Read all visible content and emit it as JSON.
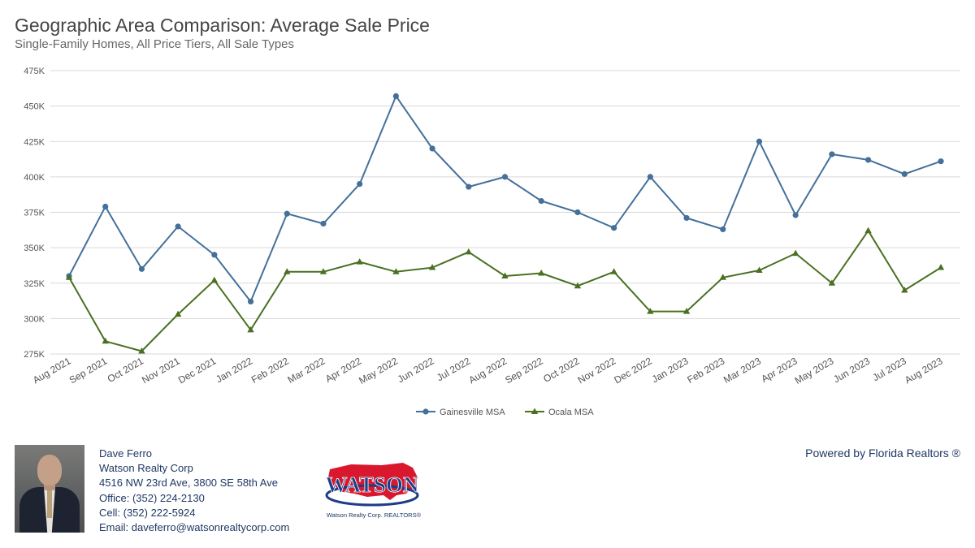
{
  "header": {
    "title": "Geographic Area Comparison: Average Sale Price",
    "subtitle": "Single-Family Homes, All Price Tiers, All Sale Types"
  },
  "chart_data": {
    "type": "line",
    "title": "Geographic Area Comparison: Average Sale Price",
    "subtitle": "Single-Family Homes, All Price Tiers, All Sale Types",
    "xlabel": "",
    "ylabel": "",
    "ylim": [
      275000,
      475000
    ],
    "yticks": [
      275000,
      300000,
      325000,
      350000,
      375000,
      400000,
      425000,
      450000,
      475000
    ],
    "ytick_labels": [
      "275K",
      "300K",
      "325K",
      "350K",
      "375K",
      "400K",
      "425K",
      "450K",
      "475K"
    ],
    "grid": true,
    "legend_position": "bottom-center",
    "categories": [
      "Aug 2021",
      "Sep 2021",
      "Oct 2021",
      "Nov 2021",
      "Dec 2021",
      "Jan 2022",
      "Feb 2022",
      "Mar 2022",
      "Apr 2022",
      "May 2022",
      "Jun 2022",
      "Jul 2022",
      "Aug 2022",
      "Sep 2022",
      "Oct 2022",
      "Nov 2022",
      "Dec 2022",
      "Jan 2023",
      "Feb 2023",
      "Mar 2023",
      "Apr 2023",
      "May 2023",
      "Jun 2023",
      "Jul 2023",
      "Aug 2023"
    ],
    "series": [
      {
        "name": "Gainesville MSA",
        "color": "#44709a",
        "marker": "circle",
        "values": [
          330000,
          379000,
          335000,
          365000,
          345000,
          312000,
          374000,
          367000,
          395000,
          457000,
          420000,
          393000,
          400000,
          383000,
          375000,
          364000,
          400000,
          371000,
          363000,
          425000,
          373000,
          416000,
          412000,
          402000,
          411000
        ]
      },
      {
        "name": "Ocala MSA",
        "color": "#4a7023",
        "marker": "triangle",
        "values": [
          329000,
          284000,
          277000,
          303000,
          327000,
          292000,
          333000,
          333000,
          340000,
          333000,
          336000,
          347000,
          330000,
          332000,
          323000,
          333000,
          305000,
          305000,
          329000,
          334000,
          346000,
          325000,
          362000,
          320000,
          336000
        ]
      }
    ]
  },
  "agent": {
    "name": "Dave Ferro",
    "company": "Watson Realty Corp",
    "address": "4516 NW 23rd Ave, 3800 SE 58th Ave",
    "office": "Office: (352) 224-2130",
    "cell": "Cell: (352) 222-5924",
    "email": "Email: daveferro@watsonrealtycorp.com"
  },
  "logo": {
    "wordmark": "WATSON",
    "caption": "Watson Realty Corp. REALTORS®"
  },
  "powered_by": "Powered by Florida Realtors ®",
  "colors": {
    "gainesville": "#44709a",
    "ocala": "#4a7023",
    "grid": "#d9d9d9",
    "text_dark": "#1f3864"
  }
}
